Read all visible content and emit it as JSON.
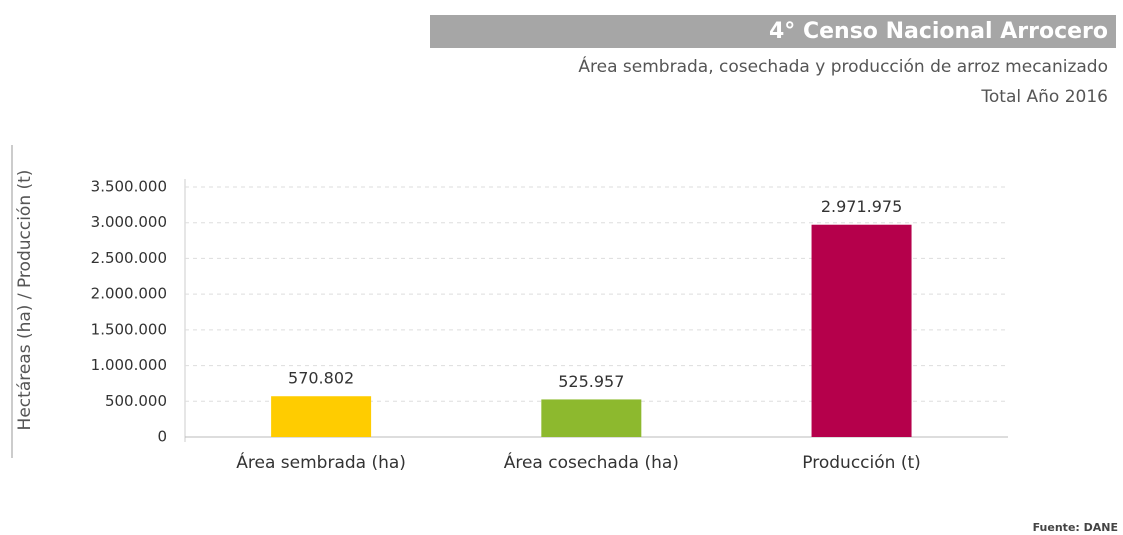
{
  "chart_data": {
    "type": "bar",
    "title": "4° Censo Nacional Arrocero",
    "subtitle": [
      "Área sembrada, cosechada y producción de arroz mecanizado",
      "Total Año 2016"
    ],
    "y_label": "Hectáreas (ha) / Producción (t)",
    "source": "Fuente: DANE",
    "categories": [
      "Área sembrada (ha)",
      "Área cosechada (ha)",
      "Producción (t)"
    ],
    "values": [
      570802,
      525957,
      2971975
    ],
    "value_labels": [
      "570.802",
      "525.957",
      "2.971.975"
    ],
    "colors": [
      "#ffcc00",
      "#8db92e",
      "#b5004b"
    ],
    "ylim": [
      0,
      3500000
    ],
    "yticks": [
      0,
      {
        "value": 500000,
        "label": "500.000"
      },
      {
        "value": 1000000,
        "label": "1.000.000"
      },
      {
        "value": 1500000,
        "label": "1.500.000"
      },
      {
        "value": 2000000,
        "label": "2.000.000"
      },
      {
        "value": 2500000,
        "label": "2.500.000"
      },
      {
        "value": 3000000,
        "label": "3.000.000"
      },
      {
        "value": 3500000,
        "label": "3.500.000"
      }
    ],
    "grid": true
  }
}
